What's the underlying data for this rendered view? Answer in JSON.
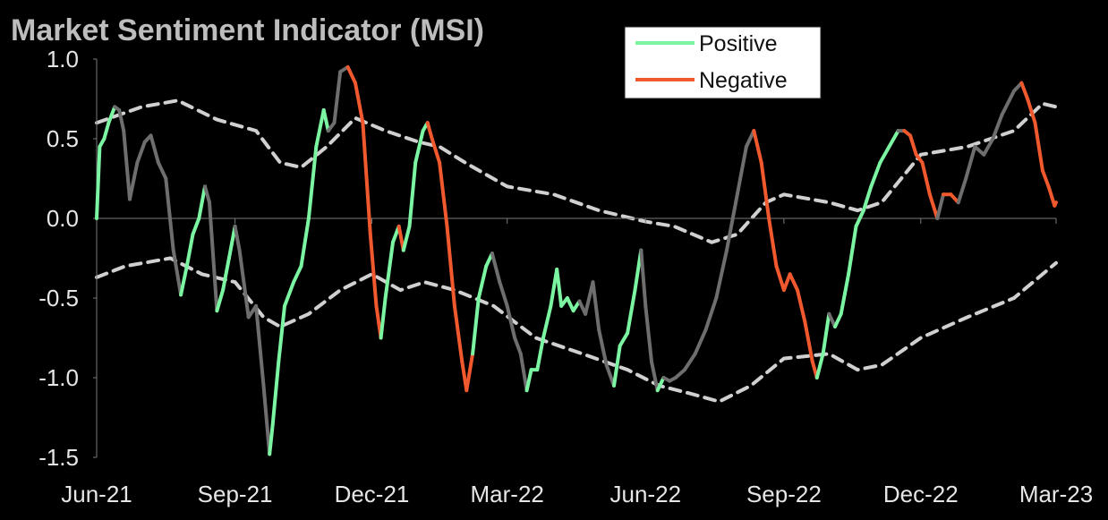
{
  "colors": {
    "background": "#000000",
    "positive": "#7CF5A2",
    "negative": "#F0592E",
    "neutral": "#6e6e6e",
    "band": "#d0d0d0",
    "axis": "#7a7a7a",
    "text": "#e6e6e6",
    "title": "#bdbdbd"
  },
  "chart_data": {
    "type": "line",
    "title": "Market Sentiment Indicator (MSI)",
    "xlabel": "",
    "ylabel": "",
    "ylim": [
      -1.5,
      1.0
    ],
    "yticks": [
      {
        "value": 1.0,
        "label": "1.0"
      },
      {
        "value": 0.5,
        "label": "0.5"
      },
      {
        "value": 0.0,
        "label": "0.0"
      },
      {
        "value": -0.5,
        "label": "-0.5"
      },
      {
        "value": -1.0,
        "label": "-1.0"
      },
      {
        "value": -1.5,
        "label": "-1.5"
      }
    ],
    "xlim": [
      "2021-06-01",
      "2023-03-01"
    ],
    "xticks": [
      {
        "date": "2021-06-01",
        "label": "Jun-21"
      },
      {
        "date": "2021-09-01",
        "label": "Sep-21"
      },
      {
        "date": "2021-12-01",
        "label": "Dec-21"
      },
      {
        "date": "2022-03-01",
        "label": "Mar-22"
      },
      {
        "date": "2022-06-01",
        "label": "Jun-22"
      },
      {
        "date": "2022-09-01",
        "label": "Sep-22"
      },
      {
        "date": "2022-12-01",
        "label": "Dec-22"
      },
      {
        "date": "2023-03-01",
        "label": "Mar-23"
      }
    ],
    "legend": {
      "position": "top-center",
      "entries": [
        {
          "label": "Positive",
          "color": "#7CF5A2"
        },
        {
          "label": "Negative",
          "color": "#F0592E"
        }
      ]
    },
    "grid": false,
    "msi": [
      {
        "x": "2021-06-01",
        "y": 0.0,
        "s": "pos"
      },
      {
        "x": "2021-06-03",
        "y": 0.45,
        "s": "pos"
      },
      {
        "x": "2021-06-06",
        "y": 0.5,
        "s": "pos"
      },
      {
        "x": "2021-06-09",
        "y": 0.6,
        "s": "pos"
      },
      {
        "x": "2021-06-13",
        "y": 0.7,
        "s": "pos"
      },
      {
        "x": "2021-06-16",
        "y": 0.68,
        "s": "neu"
      },
      {
        "x": "2021-06-19",
        "y": 0.55,
        "s": "neu"
      },
      {
        "x": "2021-06-23",
        "y": 0.12,
        "s": "neu"
      },
      {
        "x": "2021-06-28",
        "y": 0.35,
        "s": "neu"
      },
      {
        "x": "2021-07-03",
        "y": 0.48,
        "s": "neu"
      },
      {
        "x": "2021-07-07",
        "y": 0.52,
        "s": "neu"
      },
      {
        "x": "2021-07-12",
        "y": 0.35,
        "s": "neu"
      },
      {
        "x": "2021-07-17",
        "y": 0.25,
        "s": "neu"
      },
      {
        "x": "2021-07-22",
        "y": -0.2,
        "s": "neu"
      },
      {
        "x": "2021-07-27",
        "y": -0.48,
        "s": "neu"
      },
      {
        "x": "2021-07-31",
        "y": -0.3,
        "s": "pos"
      },
      {
        "x": "2021-08-04",
        "y": -0.1,
        "s": "pos"
      },
      {
        "x": "2021-08-08",
        "y": 0.0,
        "s": "pos"
      },
      {
        "x": "2021-08-12",
        "y": 0.2,
        "s": "pos"
      },
      {
        "x": "2021-08-15",
        "y": 0.1,
        "s": "neu"
      },
      {
        "x": "2021-08-20",
        "y": -0.58,
        "s": "neu"
      },
      {
        "x": "2021-08-24",
        "y": -0.45,
        "s": "pos"
      },
      {
        "x": "2021-08-28",
        "y": -0.25,
        "s": "pos"
      },
      {
        "x": "2021-09-01",
        "y": -0.05,
        "s": "pos"
      },
      {
        "x": "2021-09-04",
        "y": -0.2,
        "s": "neu"
      },
      {
        "x": "2021-09-10",
        "y": -0.62,
        "s": "neu"
      },
      {
        "x": "2021-09-15",
        "y": -0.55,
        "s": "neu"
      },
      {
        "x": "2021-09-20",
        "y": -1.05,
        "s": "neu"
      },
      {
        "x": "2021-09-24",
        "y": -1.48,
        "s": "neu"
      },
      {
        "x": "2021-09-26",
        "y": -1.3,
        "s": "pos"
      },
      {
        "x": "2021-09-30",
        "y": -0.9,
        "s": "pos"
      },
      {
        "x": "2021-10-04",
        "y": -0.55,
        "s": "pos"
      },
      {
        "x": "2021-10-10",
        "y": -0.4,
        "s": "pos"
      },
      {
        "x": "2021-10-15",
        "y": -0.3,
        "s": "pos"
      },
      {
        "x": "2021-10-20",
        "y": 0.0,
        "s": "pos"
      },
      {
        "x": "2021-10-25",
        "y": 0.45,
        "s": "pos"
      },
      {
        "x": "2021-10-30",
        "y": 0.68,
        "s": "pos"
      },
      {
        "x": "2021-11-02",
        "y": 0.55,
        "s": "pos"
      },
      {
        "x": "2021-11-06",
        "y": 0.6,
        "s": "neu"
      },
      {
        "x": "2021-11-10",
        "y": 0.92,
        "s": "neu"
      },
      {
        "x": "2021-11-15",
        "y": 0.95,
        "s": "neu"
      },
      {
        "x": "2021-11-20",
        "y": 0.85,
        "s": "neg"
      },
      {
        "x": "2021-11-25",
        "y": 0.6,
        "s": "neg"
      },
      {
        "x": "2021-11-30",
        "y": -0.1,
        "s": "neg"
      },
      {
        "x": "2021-12-04",
        "y": -0.55,
        "s": "neg"
      },
      {
        "x": "2021-12-07",
        "y": -0.75,
        "s": "neg"
      },
      {
        "x": "2021-12-10",
        "y": -0.5,
        "s": "pos"
      },
      {
        "x": "2021-12-15",
        "y": -0.15,
        "s": "pos"
      },
      {
        "x": "2021-12-19",
        "y": -0.05,
        "s": "pos"
      },
      {
        "x": "2021-12-22",
        "y": -0.2,
        "s": "neg"
      },
      {
        "x": "2021-12-26",
        "y": -0.05,
        "s": "pos"
      },
      {
        "x": "2021-12-30",
        "y": 0.35,
        "s": "pos"
      },
      {
        "x": "2022-01-04",
        "y": 0.55,
        "s": "pos"
      },
      {
        "x": "2022-01-07",
        "y": 0.6,
        "s": "pos"
      },
      {
        "x": "2022-01-10",
        "y": 0.5,
        "s": "neg"
      },
      {
        "x": "2022-01-15",
        "y": 0.35,
        "s": "neg"
      },
      {
        "x": "2022-01-20",
        "y": -0.05,
        "s": "neg"
      },
      {
        "x": "2022-01-25",
        "y": -0.55,
        "s": "neg"
      },
      {
        "x": "2022-01-30",
        "y": -0.9,
        "s": "neg"
      },
      {
        "x": "2022-02-02",
        "y": -1.08,
        "s": "neg"
      },
      {
        "x": "2022-02-06",
        "y": -0.85,
        "s": "neg"
      },
      {
        "x": "2022-02-10",
        "y": -0.5,
        "s": "pos"
      },
      {
        "x": "2022-02-15",
        "y": -0.3,
        "s": "pos"
      },
      {
        "x": "2022-02-19",
        "y": -0.22,
        "s": "pos"
      },
      {
        "x": "2022-02-24",
        "y": -0.4,
        "s": "neu"
      },
      {
        "x": "2022-03-01",
        "y": -0.55,
        "s": "neu"
      },
      {
        "x": "2022-03-06",
        "y": -0.75,
        "s": "neu"
      },
      {
        "x": "2022-03-10",
        "y": -0.85,
        "s": "neu"
      },
      {
        "x": "2022-03-14",
        "y": -1.08,
        "s": "neu"
      },
      {
        "x": "2022-03-17",
        "y": -0.95,
        "s": "pos"
      },
      {
        "x": "2022-03-21",
        "y": -0.95,
        "s": "pos"
      },
      {
        "x": "2022-03-25",
        "y": -0.75,
        "s": "pos"
      },
      {
        "x": "2022-03-30",
        "y": -0.55,
        "s": "pos"
      },
      {
        "x": "2022-04-03",
        "y": -0.32,
        "s": "pos"
      },
      {
        "x": "2022-04-06",
        "y": -0.55,
        "s": "pos"
      },
      {
        "x": "2022-04-10",
        "y": -0.5,
        "s": "pos"
      },
      {
        "x": "2022-04-14",
        "y": -0.58,
        "s": "pos"
      },
      {
        "x": "2022-04-18",
        "y": -0.52,
        "s": "pos"
      },
      {
        "x": "2022-04-22",
        "y": -0.6,
        "s": "neu"
      },
      {
        "x": "2022-04-27",
        "y": -0.4,
        "s": "neu"
      },
      {
        "x": "2022-05-01",
        "y": -0.7,
        "s": "neu"
      },
      {
        "x": "2022-05-06",
        "y": -0.92,
        "s": "neu"
      },
      {
        "x": "2022-05-11",
        "y": -1.05,
        "s": "neu"
      },
      {
        "x": "2022-05-15",
        "y": -0.8,
        "s": "pos"
      },
      {
        "x": "2022-05-20",
        "y": -0.72,
        "s": "pos"
      },
      {
        "x": "2022-05-25",
        "y": -0.45,
        "s": "pos"
      },
      {
        "x": "2022-05-29",
        "y": -0.2,
        "s": "pos"
      },
      {
        "x": "2022-06-01",
        "y": -0.55,
        "s": "neu"
      },
      {
        "x": "2022-06-05",
        "y": -0.9,
        "s": "neu"
      },
      {
        "x": "2022-06-09",
        "y": -1.08,
        "s": "neu"
      },
      {
        "x": "2022-06-13",
        "y": -1.0,
        "s": "pos"
      },
      {
        "x": "2022-06-17",
        "y": -1.02,
        "s": "neu"
      },
      {
        "x": "2022-06-21",
        "y": -1.0,
        "s": "neu"
      },
      {
        "x": "2022-06-27",
        "y": -0.95,
        "s": "neu"
      },
      {
        "x": "2022-07-04",
        "y": -0.85,
        "s": "neu"
      },
      {
        "x": "2022-07-11",
        "y": -0.7,
        "s": "neu"
      },
      {
        "x": "2022-07-18",
        "y": -0.5,
        "s": "neu"
      },
      {
        "x": "2022-07-25",
        "y": -0.2,
        "s": "neu"
      },
      {
        "x": "2022-08-01",
        "y": 0.15,
        "s": "neu"
      },
      {
        "x": "2022-08-07",
        "y": 0.45,
        "s": "neu"
      },
      {
        "x": "2022-08-12",
        "y": 0.55,
        "s": "neu"
      },
      {
        "x": "2022-08-17",
        "y": 0.35,
        "s": "neg"
      },
      {
        "x": "2022-08-22",
        "y": 0.0,
        "s": "neg"
      },
      {
        "x": "2022-08-27",
        "y": -0.3,
        "s": "neg"
      },
      {
        "x": "2022-09-01",
        "y": -0.45,
        "s": "neg"
      },
      {
        "x": "2022-09-05",
        "y": -0.35,
        "s": "neg"
      },
      {
        "x": "2022-09-10",
        "y": -0.45,
        "s": "neg"
      },
      {
        "x": "2022-09-15",
        "y": -0.65,
        "s": "neg"
      },
      {
        "x": "2022-09-20",
        "y": -0.9,
        "s": "neg"
      },
      {
        "x": "2022-09-23",
        "y": -1.0,
        "s": "neg"
      },
      {
        "x": "2022-09-27",
        "y": -0.85,
        "s": "pos"
      },
      {
        "x": "2022-10-01",
        "y": -0.6,
        "s": "pos"
      },
      {
        "x": "2022-10-05",
        "y": -0.68,
        "s": "neu"
      },
      {
        "x": "2022-10-09",
        "y": -0.6,
        "s": "pos"
      },
      {
        "x": "2022-10-14",
        "y": -0.35,
        "s": "pos"
      },
      {
        "x": "2022-10-19",
        "y": -0.05,
        "s": "pos"
      },
      {
        "x": "2022-10-24",
        "y": 0.05,
        "s": "pos"
      },
      {
        "x": "2022-10-29",
        "y": 0.2,
        "s": "pos"
      },
      {
        "x": "2022-11-04",
        "y": 0.35,
        "s": "pos"
      },
      {
        "x": "2022-11-10",
        "y": 0.45,
        "s": "pos"
      },
      {
        "x": "2022-11-16",
        "y": 0.55,
        "s": "pos"
      },
      {
        "x": "2022-11-20",
        "y": 0.55,
        "s": "neu"
      },
      {
        "x": "2022-11-24",
        "y": 0.52,
        "s": "neg"
      },
      {
        "x": "2022-11-28",
        "y": 0.4,
        "s": "neg"
      },
      {
        "x": "2022-12-02",
        "y": 0.35,
        "s": "neg"
      },
      {
        "x": "2022-12-07",
        "y": 0.15,
        "s": "neg"
      },
      {
        "x": "2022-12-12",
        "y": 0.0,
        "s": "neg"
      },
      {
        "x": "2022-12-16",
        "y": 0.15,
        "s": "neu"
      },
      {
        "x": "2022-12-21",
        "y": 0.15,
        "s": "neg"
      },
      {
        "x": "2022-12-26",
        "y": 0.1,
        "s": "neg"
      },
      {
        "x": "2022-12-31",
        "y": 0.25,
        "s": "neu"
      },
      {
        "x": "2023-01-06",
        "y": 0.45,
        "s": "neu"
      },
      {
        "x": "2023-01-12",
        "y": 0.4,
        "s": "neu"
      },
      {
        "x": "2023-01-18",
        "y": 0.5,
        "s": "neu"
      },
      {
        "x": "2023-01-24",
        "y": 0.65,
        "s": "neu"
      },
      {
        "x": "2023-02-01",
        "y": 0.8,
        "s": "neu"
      },
      {
        "x": "2023-02-06",
        "y": 0.85,
        "s": "neu"
      },
      {
        "x": "2023-02-10",
        "y": 0.75,
        "s": "neg"
      },
      {
        "x": "2023-02-15",
        "y": 0.6,
        "s": "neg"
      },
      {
        "x": "2023-02-20",
        "y": 0.3,
        "s": "neg"
      },
      {
        "x": "2023-02-24",
        "y": 0.2,
        "s": "neg"
      },
      {
        "x": "2023-02-28",
        "y": 0.08,
        "s": "neg"
      },
      {
        "x": "2023-03-01",
        "y": 0.1,
        "s": "neg"
      }
    ],
    "upper_band": [
      {
        "x": "2021-06-01",
        "y": 0.6
      },
      {
        "x": "2021-07-01",
        "y": 0.7
      },
      {
        "x": "2021-07-25",
        "y": 0.74
      },
      {
        "x": "2021-08-20",
        "y": 0.62
      },
      {
        "x": "2021-09-15",
        "y": 0.55
      },
      {
        "x": "2021-10-01",
        "y": 0.35
      },
      {
        "x": "2021-10-15",
        "y": 0.32
      },
      {
        "x": "2021-11-01",
        "y": 0.45
      },
      {
        "x": "2021-11-20",
        "y": 0.63
      },
      {
        "x": "2021-12-10",
        "y": 0.55
      },
      {
        "x": "2022-01-01",
        "y": 0.48
      },
      {
        "x": "2022-01-15",
        "y": 0.45
      },
      {
        "x": "2022-02-01",
        "y": 0.35
      },
      {
        "x": "2022-03-01",
        "y": 0.2
      },
      {
        "x": "2022-04-01",
        "y": 0.15
      },
      {
        "x": "2022-05-01",
        "y": 0.05
      },
      {
        "x": "2022-06-01",
        "y": -0.02
      },
      {
        "x": "2022-06-20",
        "y": -0.05
      },
      {
        "x": "2022-07-15",
        "y": -0.15
      },
      {
        "x": "2022-08-01",
        "y": -0.1
      },
      {
        "x": "2022-08-20",
        "y": 0.1
      },
      {
        "x": "2022-09-01",
        "y": 0.15
      },
      {
        "x": "2022-10-01",
        "y": 0.1
      },
      {
        "x": "2022-10-20",
        "y": 0.05
      },
      {
        "x": "2022-11-05",
        "y": 0.1
      },
      {
        "x": "2022-12-01",
        "y": 0.4
      },
      {
        "x": "2023-01-01",
        "y": 0.45
      },
      {
        "x": "2023-02-01",
        "y": 0.55
      },
      {
        "x": "2023-02-20",
        "y": 0.72
      },
      {
        "x": "2023-03-01",
        "y": 0.7
      }
    ],
    "lower_band": [
      {
        "x": "2021-06-01",
        "y": -0.37
      },
      {
        "x": "2021-06-20",
        "y": -0.3
      },
      {
        "x": "2021-07-20",
        "y": -0.25
      },
      {
        "x": "2021-08-10",
        "y": -0.35
      },
      {
        "x": "2021-09-01",
        "y": -0.4
      },
      {
        "x": "2021-09-20",
        "y": -0.62
      },
      {
        "x": "2021-10-01",
        "y": -0.68
      },
      {
        "x": "2021-10-20",
        "y": -0.6
      },
      {
        "x": "2021-11-10",
        "y": -0.45
      },
      {
        "x": "2021-12-01",
        "y": -0.35
      },
      {
        "x": "2021-12-20",
        "y": -0.45
      },
      {
        "x": "2022-01-05",
        "y": -0.4
      },
      {
        "x": "2022-01-25",
        "y": -0.45
      },
      {
        "x": "2022-02-20",
        "y": -0.55
      },
      {
        "x": "2022-03-20",
        "y": -0.75
      },
      {
        "x": "2022-04-20",
        "y": -0.85
      },
      {
        "x": "2022-05-20",
        "y": -0.95
      },
      {
        "x": "2022-06-10",
        "y": -1.05
      },
      {
        "x": "2022-07-01",
        "y": -1.1
      },
      {
        "x": "2022-07-20",
        "y": -1.15
      },
      {
        "x": "2022-08-10",
        "y": -1.05
      },
      {
        "x": "2022-09-01",
        "y": -0.88
      },
      {
        "x": "2022-10-01",
        "y": -0.85
      },
      {
        "x": "2022-10-20",
        "y": -0.95
      },
      {
        "x": "2022-11-05",
        "y": -0.92
      },
      {
        "x": "2022-12-01",
        "y": -0.75
      },
      {
        "x": "2023-01-01",
        "y": -0.62
      },
      {
        "x": "2023-02-01",
        "y": -0.5
      },
      {
        "x": "2023-02-20",
        "y": -0.35
      },
      {
        "x": "2023-03-01",
        "y": -0.28
      }
    ]
  }
}
